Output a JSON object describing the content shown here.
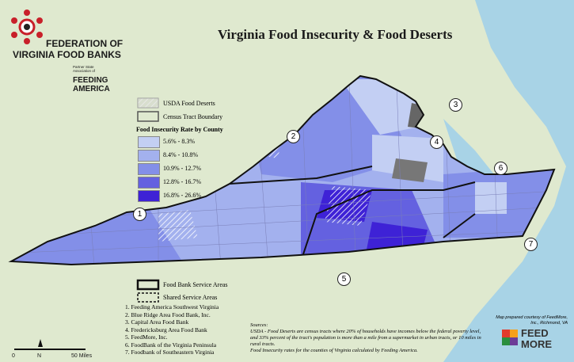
{
  "logo": {
    "line1": "FEDERATION OF",
    "line2": "VIRGINIA FOOD BANKS",
    "partner": "Partner State Association of",
    "feeding": "FEEDING",
    "america": "AMERICA"
  },
  "title": "Virginia Food Insecurity & Food Deserts",
  "legend": {
    "food_deserts": "USDA Food Deserts",
    "tract_boundary": "Census Tract Boundary",
    "rate_title": "Food Insecurity Rate by County",
    "classes": [
      {
        "label": "5.6% - 8.3%",
        "color": "#c3cff3"
      },
      {
        "label": "8.4% - 10.8%",
        "color": "#a3b1ee"
      },
      {
        "label": "10.9% - 12.7%",
        "color": "#838fe8"
      },
      {
        "label": "12.8% - 16.7%",
        "color": "#6461e0"
      },
      {
        "label": "16.8% - 26.6%",
        "color": "#3e22d6"
      }
    ],
    "service_areas": "Food Bank Service Areas",
    "shared_areas": "Shared Service Areas"
  },
  "area_numbers": [
    "1",
    "2",
    "3",
    "4",
    "5",
    "6",
    "7"
  ],
  "food_banks": [
    "1. Feeding America Southwest Virginia",
    "2. Blue Ridge Area Food Bank, Inc.",
    "3. Capital Area Food Bank",
    "4. Fredericksburg Area Food Bank",
    "5. FeedMore, Inc.",
    "6. FoodBank of the Virginia Peninsula",
    "7. Foodbank of Southeastern Virginia"
  ],
  "scale": {
    "zero": "0",
    "north": "N",
    "miles": "50 Miles"
  },
  "sources": {
    "heading": "Sources:",
    "line1": "USDA - Food Deserts are census tracts where 20% of households have incomes below the federal poverty level, and 33% percent of the tract's population is more than a mile from a supermarket in urban tracts, or 10 miles in rural tracts.",
    "line2": "Food Insecurity rates for the counties of Virginia calculated by Feeding America."
  },
  "credit": "Map prepared courtesy of FeedMore, Inc., Richmond, VA",
  "feedmore": {
    "feed": "FEED",
    "more": "MORE"
  }
}
